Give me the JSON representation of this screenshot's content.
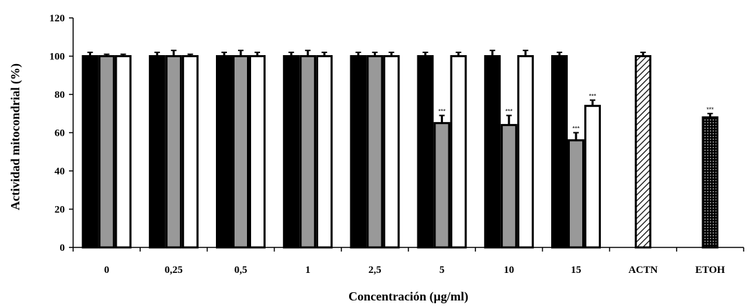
{
  "chart_data": {
    "type": "bar",
    "title": "",
    "xlabel": "Concentración (µg/ml)",
    "ylabel": "Actividad mitocondrial (%)",
    "ylim": [
      0,
      120
    ],
    "yticks": [
      0,
      20,
      40,
      60,
      80,
      100,
      120
    ],
    "grid": false,
    "legend": "none",
    "categories": [
      "0",
      "0,25",
      "0,5",
      "1",
      "2,5",
      "5",
      "10",
      "15",
      "ACTN",
      "ETOH"
    ],
    "series": [
      {
        "fill": "#000000",
        "pattern": "solid",
        "values": [
          100,
          100,
          100,
          100,
          100,
          100,
          100,
          100,
          null,
          null
        ],
        "errors": [
          2,
          2,
          2,
          2,
          2,
          2,
          3,
          2,
          null,
          null
        ],
        "significance": [
          "",
          "",
          "",
          "",
          "",
          "",
          "",
          "",
          "",
          ""
        ]
      },
      {
        "fill": "#999999",
        "pattern": "solid",
        "values": [
          100,
          100,
          100,
          100,
          100,
          65,
          64,
          56,
          null,
          null
        ],
        "errors": [
          1,
          3,
          3,
          3,
          2,
          4,
          5,
          4,
          null,
          null
        ],
        "significance": [
          "",
          "",
          "",
          "",
          "",
          "***",
          "***",
          "***",
          "",
          ""
        ]
      },
      {
        "fill": "#ffffff",
        "pattern": "solid",
        "values": [
          100,
          100,
          100,
          100,
          100,
          100,
          100,
          74,
          null,
          null
        ],
        "errors": [
          1,
          1,
          2,
          2,
          2,
          2,
          3,
          3,
          null,
          null
        ],
        "significance": [
          "",
          "",
          "",
          "",
          "",
          "",
          "",
          "***",
          "",
          ""
        ]
      },
      {
        "fill": "#ffffff",
        "pattern": "hatch",
        "values": [
          null,
          null,
          null,
          null,
          null,
          null,
          null,
          null,
          100,
          null
        ],
        "errors": [
          null,
          null,
          null,
          null,
          null,
          null,
          null,
          null,
          2,
          null
        ],
        "significance": [
          "",
          "",
          "",
          "",
          "",
          "",
          "",
          "",
          "",
          ""
        ]
      },
      {
        "fill": "#000000",
        "pattern": "dots",
        "values": [
          null,
          null,
          null,
          null,
          null,
          null,
          null,
          null,
          null,
          68
        ],
        "errors": [
          null,
          null,
          null,
          null,
          null,
          null,
          null,
          null,
          null,
          2
        ],
        "significance": [
          "",
          "",
          "",
          "",
          "",
          "",
          "",
          "",
          "",
          "***"
        ]
      }
    ]
  }
}
